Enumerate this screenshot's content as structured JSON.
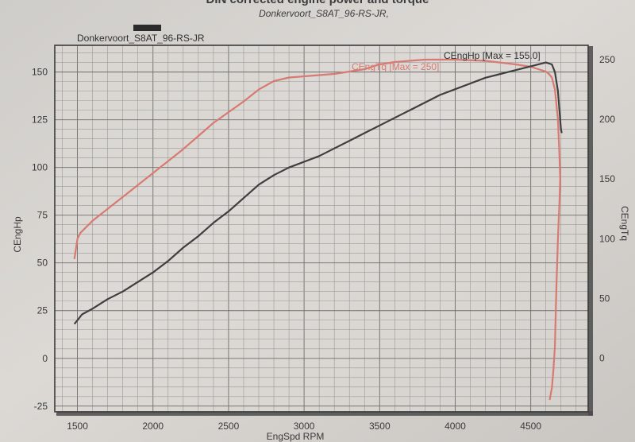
{
  "chart_data": {
    "type": "line",
    "title": "DIN corrected engine power and torque",
    "subtitle": "Donkervoort_S8AT_96-RS-JR,",
    "plot_label": "Donkervoort_S8AT_96-RS-JR",
    "xlabel": "EngSpd RPM",
    "ylabel_left": "CEngHp",
    "ylabel_right": "CEngTq",
    "xlim": [
      1350,
      4880
    ],
    "ylim_left": [
      -28,
      164
    ],
    "ylim_right": [
      -45,
      262
    ],
    "x_ticks": [
      1500,
      2000,
      2500,
      3000,
      3500,
      4000,
      4500
    ],
    "y_ticks_left": [
      -25,
      0,
      25,
      50,
      75,
      100,
      125,
      150
    ],
    "y_ticks_right": [
      0,
      50,
      100,
      150,
      200,
      250
    ],
    "grid": true,
    "series": [
      {
        "name": "CEngHp [Max = 155.0]",
        "axis": "left",
        "color": "#3f3f3f",
        "x": [
          1480,
          1500,
          1530,
          1600,
          1700,
          1800,
          1900,
          2000,
          2100,
          2200,
          2300,
          2400,
          2500,
          2600,
          2700,
          2800,
          2900,
          3000,
          3100,
          3200,
          3300,
          3400,
          3500,
          3600,
          3700,
          3800,
          3900,
          4000,
          4100,
          4200,
          4300,
          4400,
          4500,
          4600,
          4640,
          4660,
          4680,
          4690,
          4700,
          4705
        ],
        "y": [
          18,
          20,
          23,
          26,
          31,
          35,
          40,
          45,
          51,
          58,
          64,
          71,
          77,
          84,
          91,
          96,
          100,
          103,
          106,
          110,
          114,
          118,
          122,
          126,
          130,
          134,
          138,
          141,
          144,
          147,
          149,
          151,
          153,
          155,
          154,
          150,
          140,
          130,
          120,
          118
        ]
      },
      {
        "name": "CEngTq [Max = 250]",
        "axis": "right",
        "color": "#d77a72",
        "x": [
          1480,
          1500,
          1520,
          1600,
          1700,
          1800,
          1900,
          2000,
          2200,
          2400,
          2600,
          2700,
          2800,
          2900,
          3000,
          3200,
          3400,
          3500,
          3600,
          3800,
          4000,
          4200,
          4400,
          4500,
          4550,
          4600,
          4620,
          4640,
          4660,
          4680,
          4690,
          4695,
          4690,
          4680,
          4670,
          4660,
          4650,
          4640,
          4625
        ],
        "y": [
          83,
          100,
          105,
          115,
          125,
          135,
          145,
          155,
          175,
          197,
          215,
          225,
          232,
          235,
          236,
          238,
          242,
          246,
          248,
          250,
          250,
          249,
          246,
          244,
          242,
          240,
          238,
          235,
          225,
          200,
          170,
          150,
          130,
          100,
          60,
          10,
          -10,
          -25,
          -35
        ]
      }
    ]
  }
}
